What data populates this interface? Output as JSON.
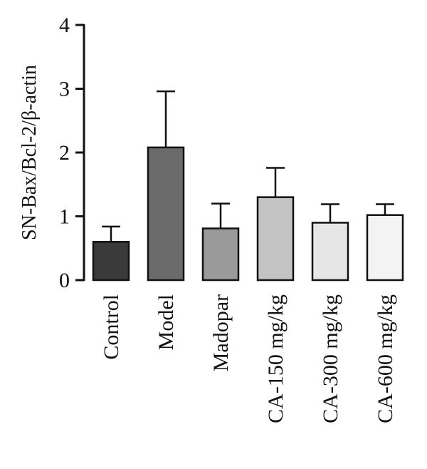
{
  "chart_data": {
    "type": "bar",
    "title": "",
    "xlabel": "",
    "ylabel": "SN-Bax/Bcl-2/β-actin",
    "ylim": [
      0,
      4
    ],
    "yticks": [
      "0",
      "1",
      "2",
      "3",
      "4"
    ],
    "grid": false,
    "categories": [
      "Control",
      "Model",
      "Madopar",
      "CA-150 mg/kg",
      "CA-300 mg/kg",
      "CA-600 mg/kg"
    ],
    "values": [
      0.6,
      2.08,
      0.81,
      1.3,
      0.9,
      1.02
    ],
    "error_bars_upper": [
      0.24,
      0.88,
      0.39,
      0.46,
      0.29,
      0.17
    ],
    "colors": [
      "#3a3a3a",
      "#6b6b6b",
      "#9a9a9a",
      "#c4c4c4",
      "#e6e6e6",
      "#f3f3f3"
    ]
  }
}
